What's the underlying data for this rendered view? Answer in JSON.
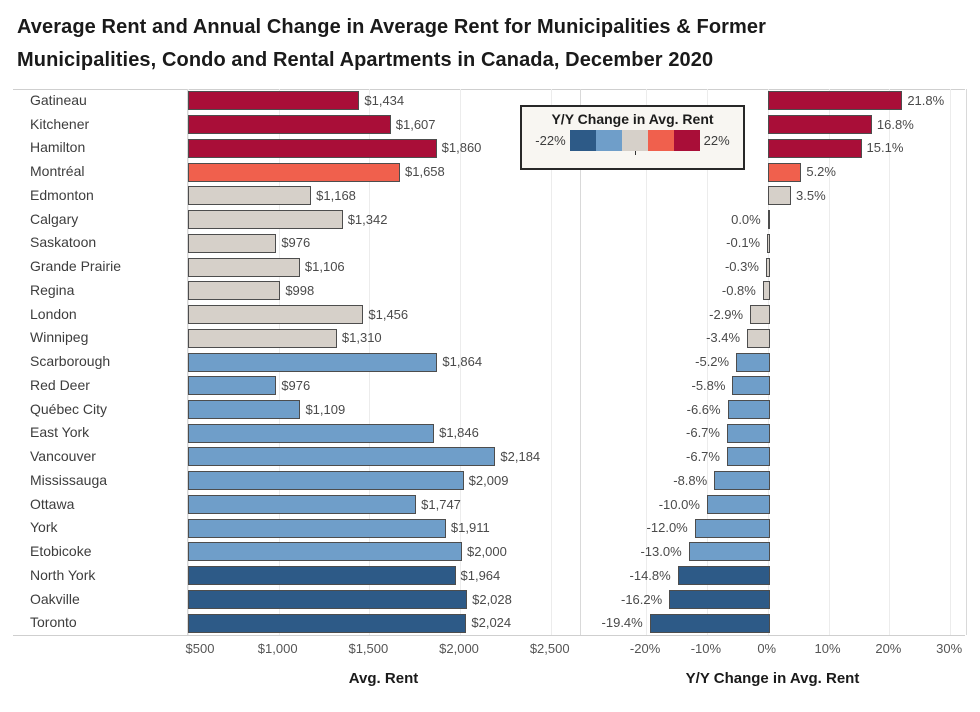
{
  "title": {
    "lines": [
      "Average Rent and Annual Change in Average Rent for Municipalities & Former",
      "Municipalities, Condo and Rental Apartments in Canada, December 2020"
    ]
  },
  "legend": {
    "title": "Y/Y Change in Avg. Rent",
    "min_label": "-22%",
    "max_label": "22%"
  },
  "axes": {
    "rent": {
      "title": "Avg. Rent",
      "min": 500,
      "max": 2667,
      "ticks": [
        {
          "value": 500,
          "label": "$500"
        },
        {
          "value": 1000,
          "label": "$1,000"
        },
        {
          "value": 1500,
          "label": "$1,500"
        },
        {
          "value": 2000,
          "label": "$2,000"
        },
        {
          "value": 2500,
          "label": "$2,500"
        }
      ]
    },
    "change": {
      "title": "Y/Y Change in Avg. Rent",
      "min": -30.7,
      "max": 32.6,
      "ticks": [
        {
          "value": -20,
          "label": "-20%"
        },
        {
          "value": -10,
          "label": "-10%"
        },
        {
          "value": 0,
          "label": "0%"
        },
        {
          "value": 10,
          "label": "10%"
        },
        {
          "value": 20,
          "label": "20%"
        },
        {
          "value": 30,
          "label": "30%"
        }
      ]
    }
  },
  "chart_data": {
    "type": "bar",
    "orientation": "horizontal",
    "categories": [
      "Gatineau",
      "Kitchener",
      "Hamilton",
      "Montréal",
      "Edmonton",
      "Calgary",
      "Saskatoon",
      "Grande Prairie",
      "Regina",
      "London",
      "Winnipeg",
      "Scarborough",
      "Red Deer",
      "Québec City",
      "East York",
      "Vancouver",
      "Mississauga",
      "Ottawa",
      "York",
      "Etobicoke",
      "North York",
      "Oakville",
      "Toronto"
    ],
    "series": [
      {
        "name": "Avg. Rent",
        "values": [
          1434,
          1607,
          1860,
          1658,
          1168,
          1342,
          976,
          1106,
          998,
          1456,
          1310,
          1864,
          976,
          1109,
          1846,
          2184,
          2009,
          1747,
          1911,
          2000,
          1964,
          2028,
          2024
        ],
        "labels": [
          "$1,434",
          "$1,607",
          "$1,860",
          "$1,658",
          "$1,168",
          "$1,342",
          "$976",
          "$1,106",
          "$998",
          "$1,456",
          "$1,310",
          "$1,864",
          "$976",
          "$1,109",
          "$1,846",
          "$2,184",
          "$2,009",
          "$1,747",
          "$1,911",
          "$2,000",
          "$1,964",
          "$2,028",
          "$2,024"
        ]
      },
      {
        "name": "Y/Y Change in Avg. Rent",
        "values": [
          21.8,
          16.8,
          15.1,
          5.2,
          3.5,
          0.0,
          -0.1,
          -0.3,
          -0.8,
          -2.9,
          -3.4,
          -5.2,
          -5.8,
          -6.6,
          -6.7,
          -6.7,
          -8.8,
          -10.0,
          -12.0,
          -13.0,
          -14.8,
          -16.2,
          -19.4
        ],
        "labels": [
          "21.8%",
          "16.8%",
          "15.1%",
          "5.2%",
          "3.5%",
          "0.0%",
          "-0.1%",
          "-0.3%",
          "-0.8%",
          "-2.9%",
          "-3.4%",
          "-5.2%",
          "-5.8%",
          "-6.6%",
          "-6.7%",
          "-6.7%",
          "-8.8%",
          "-10.0%",
          "-12.0%",
          "-13.0%",
          "-14.8%",
          "-16.2%",
          "-19.4%"
        ]
      }
    ],
    "color_scale": {
      "type": "stepped-diverging",
      "bound_to": "Y/Y Change in Avg. Rent",
      "domain": [
        -22,
        22
      ],
      "steps": 5,
      "palette": [
        "#2d5a87",
        "#6f9ec9",
        "#d6d0c9",
        "#f0604d",
        "#a90e38"
      ]
    },
    "legend_position": "floating-top-center",
    "grid": "vertical-ticks-only"
  }
}
